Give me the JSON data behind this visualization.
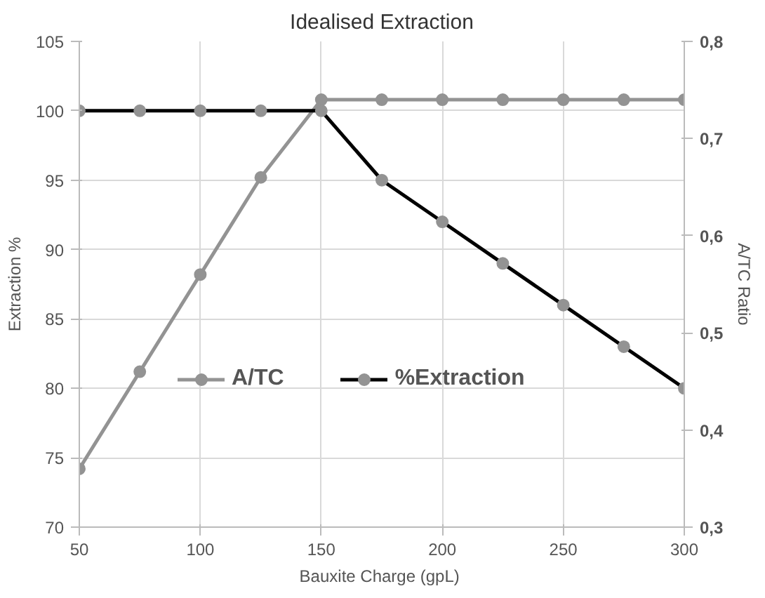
{
  "chart_data": {
    "type": "line",
    "title": "Idealised Extraction",
    "xlabel": "Bauxite Charge  (gpL)",
    "ylabel": "Extraction %",
    "y2label": "A/TC Ratio",
    "x": [
      50,
      75,
      100,
      125,
      150,
      175,
      200,
      225,
      250,
      275,
      300
    ],
    "series": [
      {
        "name": "A/TC",
        "color": "#939393",
        "axis": "y2",
        "values": [
          0.36,
          0.46,
          0.56,
          0.66,
          0.74,
          0.74,
          0.74,
          0.74,
          0.74,
          0.74,
          0.74
        ]
      },
      {
        "name": "%Extraction",
        "color": "#000000",
        "values": [
          100,
          100,
          100,
          100,
          100,
          95,
          92,
          89,
          86,
          83,
          80
        ]
      }
    ],
    "xlim": [
      50,
      300
    ],
    "xticks": [
      50,
      100,
      150,
      200,
      250,
      300
    ],
    "ylim": [
      70,
      105
    ],
    "yticks": [
      70,
      75,
      80,
      85,
      90,
      95,
      100,
      105
    ],
    "y2lim": [
      0.3,
      0.8
    ],
    "y2ticks": [
      {
        "value": 0.3,
        "label": "0,3"
      },
      {
        "value": 0.4,
        "label": "0,4"
      },
      {
        "value": 0.5,
        "label": "0,5"
      },
      {
        "value": 0.6,
        "label": "0,6"
      },
      {
        "value": 0.7,
        "label": "0,7"
      },
      {
        "value": 0.8,
        "label": "0,8"
      }
    ],
    "grid": true,
    "legend": "center",
    "marker": "circle",
    "line_style": "solid"
  }
}
